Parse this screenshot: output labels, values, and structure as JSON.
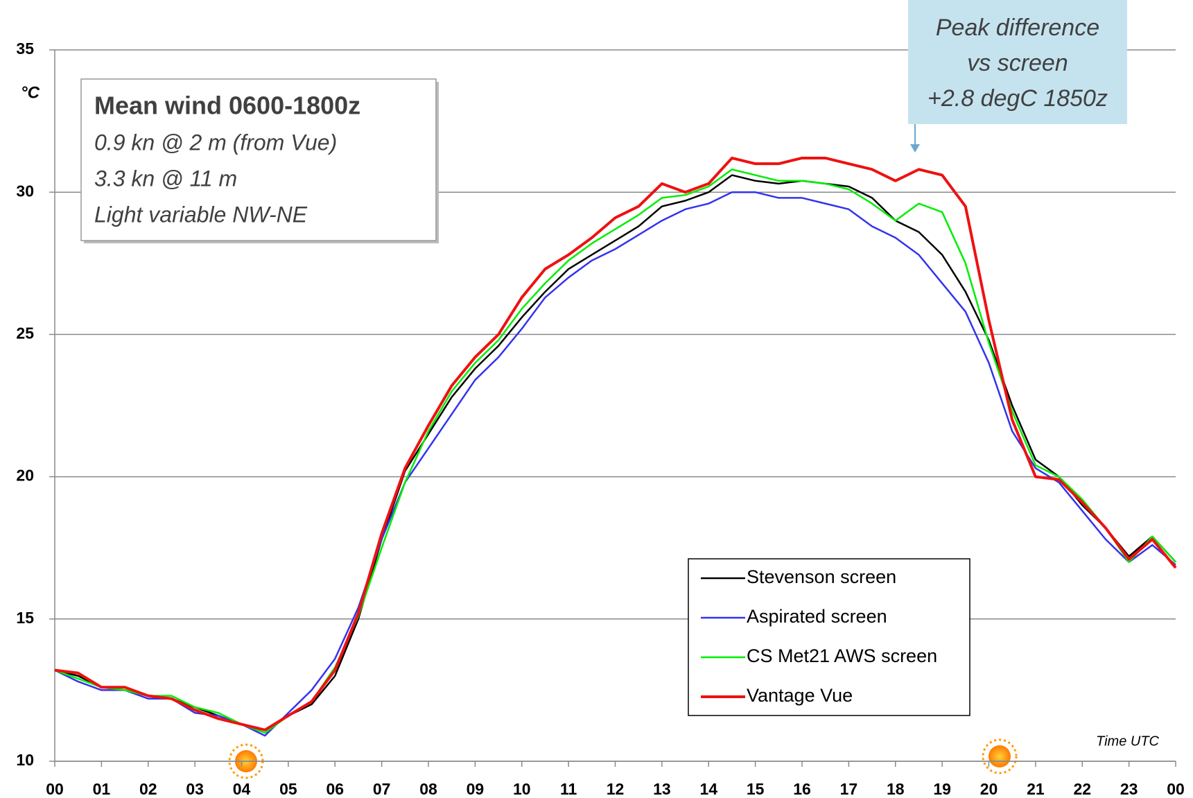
{
  "chart_data": {
    "type": "line",
    "ylabel": "°C",
    "xlabel": "Time UTC",
    "annotations": {
      "box_title": "Mean wind 0600-1800z",
      "box_lines": [
        "0.9 kn @ 2 m (from Vue)",
        "3.3 kn @ 11 m",
        "Light variable NW-NE"
      ],
      "callout": [
        "Peak difference",
        "vs screen",
        "+2.8 degC 1850z"
      ]
    },
    "x": [
      0,
      0.5,
      1,
      1.5,
      2,
      2.5,
      3,
      3.5,
      4,
      4.5,
      5,
      5.5,
      6,
      6.5,
      7,
      7.5,
      8,
      8.5,
      9,
      9.5,
      10,
      10.5,
      11,
      11.5,
      12,
      12.5,
      13,
      13.5,
      14,
      14.5,
      15,
      15.5,
      16,
      16.5,
      17,
      17.5,
      18,
      18.5,
      19,
      19.5,
      20,
      20.5,
      21,
      21.5,
      22,
      22.5,
      23,
      23.5,
      24
    ],
    "series": [
      {
        "name": "Stevenson screen",
        "color": "#000000",
        "values": [
          13.2,
          13.0,
          12.6,
          12.5,
          12.3,
          12.2,
          11.9,
          11.6,
          11.3,
          11.1,
          11.6,
          12.0,
          13.0,
          15.0,
          17.8,
          20.2,
          21.5,
          22.8,
          23.8,
          24.6,
          25.6,
          26.5,
          27.3,
          27.8,
          28.3,
          28.8,
          29.5,
          29.7,
          30.0,
          30.6,
          30.4,
          30.3,
          30.4,
          30.3,
          30.2,
          29.8,
          29.0,
          28.6,
          27.8,
          26.5,
          24.8,
          22.5,
          20.6,
          20.0,
          19.0,
          18.2,
          17.2,
          17.9,
          17.0
        ]
      },
      {
        "name": "Aspirated screen",
        "color": "#3333ee",
        "values": [
          13.2,
          12.8,
          12.5,
          12.5,
          12.2,
          12.2,
          11.7,
          11.6,
          11.3,
          10.9,
          11.7,
          12.5,
          13.6,
          15.4,
          17.8,
          19.8,
          21.0,
          22.2,
          23.4,
          24.2,
          25.2,
          26.3,
          27.0,
          27.6,
          28.0,
          28.5,
          29.0,
          29.4,
          29.6,
          30.0,
          30.0,
          29.8,
          29.8,
          29.6,
          29.4,
          28.8,
          28.4,
          27.8,
          26.8,
          25.8,
          24.0,
          21.6,
          20.3,
          19.8,
          18.8,
          17.8,
          17.0,
          17.6,
          16.9
        ]
      },
      {
        "name": "CS Met21 AWS screen",
        "color": "#00ee00",
        "values": [
          13.2,
          12.9,
          12.6,
          12.5,
          12.3,
          12.3,
          11.9,
          11.7,
          11.3,
          11.0,
          11.6,
          12.1,
          13.3,
          15.1,
          17.5,
          19.8,
          21.6,
          23.0,
          24.0,
          24.8,
          25.9,
          26.8,
          27.6,
          28.2,
          28.7,
          29.2,
          29.8,
          29.9,
          30.2,
          30.8,
          30.6,
          30.4,
          30.4,
          30.3,
          30.1,
          29.6,
          29.0,
          29.6,
          29.3,
          27.5,
          24.7,
          22.3,
          20.4,
          20.0,
          19.2,
          18.2,
          17.0,
          17.9,
          17.0
        ]
      },
      {
        "name": "Vantage Vue",
        "color": "#ee1111",
        "values": [
          13.2,
          13.1,
          12.6,
          12.6,
          12.3,
          12.2,
          11.8,
          11.5,
          11.3,
          11.1,
          11.6,
          12.1,
          13.2,
          15.2,
          18.0,
          20.3,
          21.8,
          23.2,
          24.2,
          25.0,
          26.3,
          27.3,
          27.8,
          28.4,
          29.1,
          29.5,
          30.3,
          30.0,
          30.3,
          31.2,
          31.0,
          31.0,
          31.2,
          31.2,
          31.0,
          30.8,
          30.4,
          30.8,
          30.6,
          29.5,
          25.5,
          22.0,
          20.0,
          19.9,
          19.1,
          18.2,
          17.1,
          17.8,
          16.8
        ]
      }
    ],
    "xlim": [
      0,
      24
    ],
    "xticks": [
      {
        "value": 0,
        "label": "00"
      },
      {
        "value": 1,
        "label": "01"
      },
      {
        "value": 2,
        "label": "02"
      },
      {
        "value": 3,
        "label": "03"
      },
      {
        "value": 4,
        "label": "04"
      },
      {
        "value": 5,
        "label": "05"
      },
      {
        "value": 6,
        "label": "06"
      },
      {
        "value": 7,
        "label": "07"
      },
      {
        "value": 8,
        "label": "08"
      },
      {
        "value": 9,
        "label": "09"
      },
      {
        "value": 10,
        "label": "10"
      },
      {
        "value": 11,
        "label": "11"
      },
      {
        "value": 12,
        "label": "12"
      },
      {
        "value": 13,
        "label": "13"
      },
      {
        "value": 14,
        "label": "14"
      },
      {
        "value": 15,
        "label": "15"
      },
      {
        "value": 16,
        "label": "16"
      },
      {
        "value": 17,
        "label": "17"
      },
      {
        "value": 18,
        "label": "18"
      },
      {
        "value": 19,
        "label": "19"
      },
      {
        "value": 20,
        "label": "20"
      },
      {
        "value": 21,
        "label": "21"
      },
      {
        "value": 22,
        "label": "22"
      },
      {
        "value": 23,
        "label": "23"
      },
      {
        "value": 24,
        "label": "00"
      }
    ],
    "ylim": [
      10,
      35
    ],
    "yticks": [
      10,
      15,
      20,
      25,
      30,
      35
    ],
    "grid": true
  }
}
